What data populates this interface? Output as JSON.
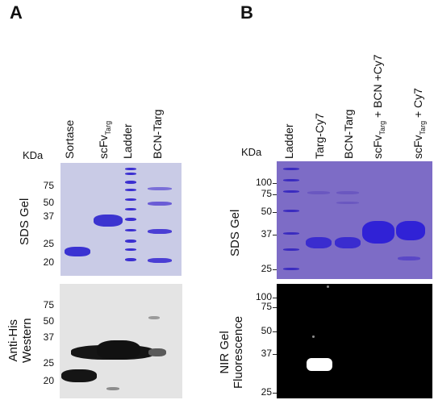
{
  "panel_a": {
    "letter": "A",
    "kda_label": "KDa",
    "lanes": [
      {
        "main": "Sortase",
        "sub": ""
      },
      {
        "main": "scFv",
        "sub": "Targ"
      },
      {
        "main": "Ladder",
        "sub": ""
      },
      {
        "main": "BCN-Targ",
        "sub": ""
      }
    ],
    "sds": {
      "label": "SDS Gel",
      "markers": [
        "75",
        "50",
        "37",
        "25",
        "20"
      ]
    },
    "western": {
      "label_line1": "Anti-His",
      "label_line2": "Western",
      "markers": [
        "75",
        "50",
        "37",
        "25",
        "20"
      ]
    }
  },
  "panel_b": {
    "letter": "B",
    "kda_label": "KDa",
    "lanes": [
      {
        "main": "Ladder",
        "sub": "",
        "tail": ""
      },
      {
        "main": "Targ-Cy7",
        "sub": "",
        "tail": ""
      },
      {
        "main": "BCN-Targ",
        "sub": "",
        "tail": ""
      },
      {
        "main": "scFv",
        "sub": "Targ",
        "tail": " + BCN +Cy7"
      },
      {
        "main": "scFv",
        "sub": "Targ",
        "tail": " + Cy7"
      }
    ],
    "sds": {
      "label": "SDS Gel",
      "markers": [
        "100",
        "75",
        "50",
        "37",
        "25"
      ]
    },
    "nir": {
      "label_line1": "NIR Gel",
      "label_line2": "Fluorescence",
      "markers": [
        "100",
        "75",
        "50",
        "37",
        "25"
      ]
    }
  },
  "colors": {
    "sds_gel_a": "#c9cbe6",
    "sds_gel_b": "#7d6cc6",
    "band_blue": "#3b2fd0",
    "western_bg": "#e4e4e4",
    "western_band": "#151515",
    "nir_bg": "#000000",
    "nir_band": "#ffffff"
  }
}
